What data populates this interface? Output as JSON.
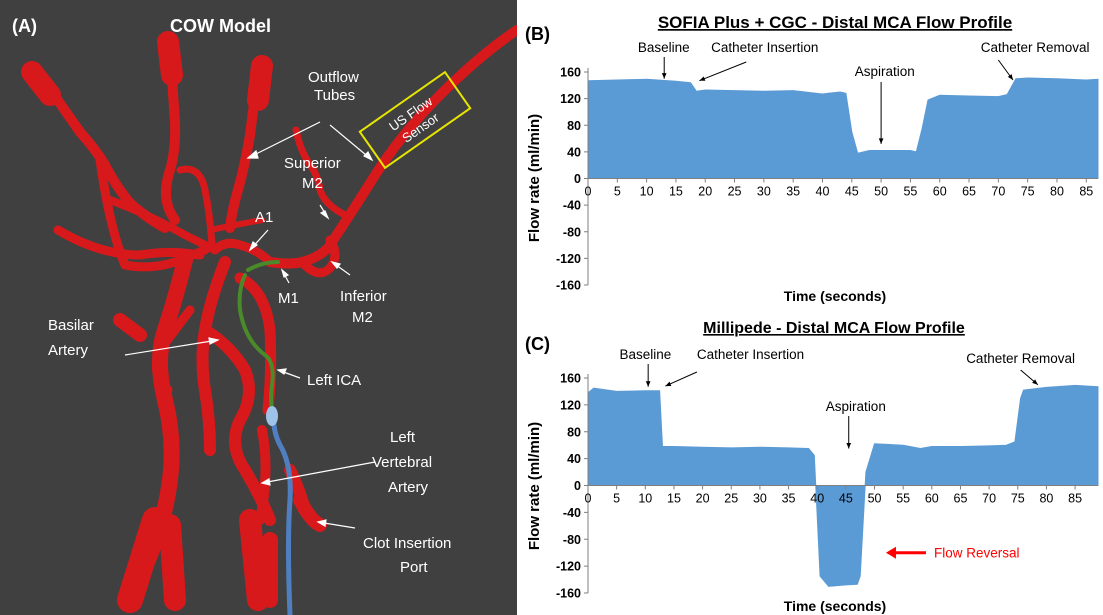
{
  "panel_a": {
    "letter": "(A)",
    "title": "COW Model",
    "background": "#404040",
    "vessel_color": "#d8191c",
    "catheter_color": "#5b9bd5",
    "guide_color": "#4a8a2a",
    "sensor_color": "#e6e600",
    "sensor_label": "US Flow Sensor",
    "labels": {
      "outflow": "Outflow Tubes",
      "superior": "Superior M2",
      "a1": "A1",
      "m1": "M1",
      "inferior": "Inferior M2",
      "basilar": "Basilar Artery",
      "left_ica": "Left ICA",
      "left_vertebral": "Left Vertebral Artery",
      "clot_port": "Clot Insertion Port"
    }
  },
  "chart_data": [
    {
      "panel": "(B)",
      "type": "area",
      "title": "SOFIA Plus + CGC - Distal MCA Flow Profile",
      "xlabel": "Time (seconds)",
      "ylabel": "Flow rate (ml/min)",
      "xlim": [
        0,
        87
      ],
      "ylim": [
        -160,
        160
      ],
      "xticks": [
        0,
        5,
        10,
        15,
        20,
        25,
        30,
        35,
        40,
        45,
        50,
        55,
        60,
        65,
        70,
        75,
        80,
        85
      ],
      "yticks": [
        160,
        120,
        80,
        40,
        0,
        -40,
        -80,
        -120,
        -160
      ],
      "fill_color": "#5b9bd5",
      "x": [
        0,
        5,
        10,
        15,
        17.5,
        18.5,
        20,
        25,
        30,
        35,
        40,
        41,
        43,
        44,
        45,
        46,
        48,
        55,
        56,
        57,
        58,
        60,
        65,
        70,
        71.5,
        73,
        75,
        80,
        85,
        87
      ],
      "y": [
        147,
        148,
        149,
        146,
        144,
        131,
        133,
        132,
        131,
        132,
        127,
        128,
        130,
        128,
        70,
        38,
        42,
        42,
        40,
        75,
        118,
        125,
        124,
        123,
        126,
        150,
        151,
        150,
        148,
        149
      ],
      "annotations": [
        {
          "text": "Baseline",
          "x": 13
        },
        {
          "text": "Catheter Insertion",
          "x": 18.5
        },
        {
          "text": "Aspiration",
          "x": 50
        },
        {
          "text": "Catheter Removal",
          "x": 72
        }
      ]
    },
    {
      "panel": "(C)",
      "type": "area",
      "title": "Millipede - Distal MCA Flow Profile",
      "xlabel": "Time (seconds)",
      "ylabel": "Flow rate (ml/min)",
      "xlim": [
        0,
        89
      ],
      "ylim": [
        -160,
        160
      ],
      "xticks": [
        0,
        5,
        10,
        15,
        20,
        25,
        30,
        35,
        40,
        45,
        50,
        55,
        60,
        65,
        70,
        75,
        80,
        85
      ],
      "yticks": [
        160,
        120,
        80,
        40,
        0,
        -40,
        -80,
        -120,
        -160
      ],
      "fill_color": "#5b9bd5",
      "x": [
        0,
        1,
        5,
        10,
        12.5,
        13,
        15,
        20,
        25,
        30,
        35,
        38.5,
        39.5,
        40.5,
        42,
        45,
        47,
        47.5,
        48.5,
        50,
        55,
        58,
        60,
        65,
        70,
        73,
        74.5,
        75.5,
        76,
        80,
        85,
        89
      ],
      "y": [
        138,
        145,
        140,
        141,
        141,
        58,
        58,
        57,
        56,
        57,
        56,
        55,
        45,
        -135,
        -150,
        -148,
        -147,
        -135,
        20,
        62,
        60,
        55,
        58,
        58,
        59,
        60,
        65,
        130,
        142,
        146,
        149,
        147
      ],
      "annotations": [
        {
          "text": "Baseline",
          "x": 10.5
        },
        {
          "text": "Catheter Insertion",
          "x": 13.5
        },
        {
          "text": "Aspiration",
          "x": 45.5
        },
        {
          "text": "Catheter Removal",
          "x": 75.5
        },
        {
          "text": "Flow Reversal",
          "x": 52,
          "y": -100,
          "color": "#ff0000"
        }
      ]
    }
  ]
}
